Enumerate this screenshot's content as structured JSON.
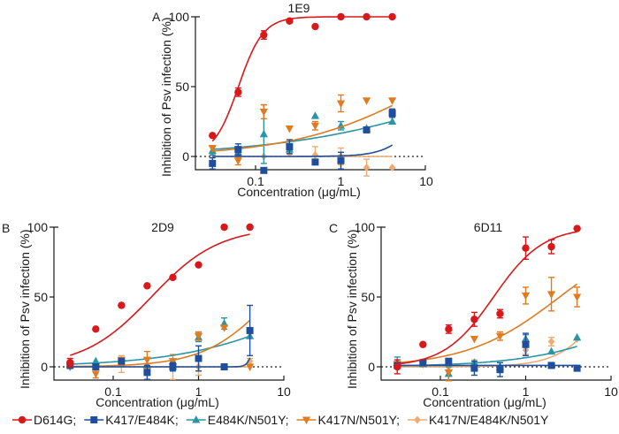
{
  "legend": [
    {
      "name": "D614G",
      "label": "D614G;",
      "color": "#d7191c",
      "marker": "circle"
    },
    {
      "name": "K417/E484K",
      "label": "K417/E484K;",
      "color": "#1f4e9c",
      "marker": "square"
    },
    {
      "name": "E484K/N501Y",
      "label": "E484K/N501Y;",
      "color": "#2b95a6",
      "marker": "triangle-up"
    },
    {
      "name": "K417N/N501Y",
      "label": "K417N/N501Y;",
      "color": "#e07b1f",
      "marker": "triangle-down"
    },
    {
      "name": "K417N/E484K/N501Y",
      "label": "K417N/E484K/N501Y",
      "color": "#eeac72",
      "marker": "diamond"
    }
  ],
  "chart_data": [
    {
      "type": "scatter",
      "panel": "A",
      "title": "1E9",
      "xlabel": "Concentration (μg/mL)",
      "ylabel": "Inhibition of Psv infection (%)",
      "xscale": "log",
      "xlim": [
        0.02,
        10
      ],
      "ylim": [
        -10,
        100
      ],
      "xticks": [
        "0.1",
        "1",
        "10"
      ],
      "yticks": [
        "0",
        "50",
        "100"
      ],
      "x": [
        0.03125,
        0.0625,
        0.125,
        0.25,
        0.5,
        1,
        2,
        4
      ],
      "series": [
        {
          "name": "D614G",
          "values": [
            15,
            46,
            87,
            97,
            93,
            100,
            100,
            100
          ],
          "errors": [
            0,
            3,
            3,
            0,
            0,
            0,
            0,
            0
          ],
          "fit": {
            "bottom": 0,
            "top": 100,
            "ec50": 0.063,
            "hill": 3.0
          }
        },
        {
          "name": "K417/E484K",
          "values": [
            -5,
            5,
            -10,
            7,
            -4,
            -3,
            19,
            31
          ],
          "errors": [
            4,
            4,
            0,
            5,
            0,
            6,
            0,
            3
          ],
          "fit": {
            "bottom": 0,
            "top": 100,
            "ec50": 12,
            "hill": 2.2
          }
        },
        {
          "name": "E484K/N501Y",
          "values": [
            4,
            3,
            16,
            5,
            29,
            22,
            20,
            25
          ],
          "errors": [
            3,
            0,
            21,
            0,
            0,
            3,
            0,
            0
          ],
          "fit": {
            "bottom": 0,
            "top": 100,
            "ec50": 70,
            "hill": 0.38
          }
        },
        {
          "name": "K417N/N501Y",
          "values": [
            6,
            -3,
            32,
            20,
            22,
            38,
            40,
            40
          ],
          "errors": [
            0,
            3,
            5,
            0,
            3,
            6,
            0,
            0
          ],
          "fit": {
            "bottom": 0,
            "top": 100,
            "ec50": 11,
            "hill": 0.55
          }
        },
        {
          "name": "K417N/E484K/N501Y",
          "values": [
            2,
            0,
            0,
            2,
            1,
            0,
            -8,
            -8
          ],
          "errors": [
            0,
            0,
            0,
            2,
            6,
            6,
            6,
            0
          ],
          "fit": {
            "flat": 0
          }
        }
      ]
    },
    {
      "type": "scatter",
      "panel": "B",
      "title": "2D9",
      "xlabel": "Concentration (μg/mL)",
      "ylabel": "Inhibition of Psv infection (%)",
      "xscale": "log",
      "xlim": [
        0.02,
        10
      ],
      "ylim": [
        -10,
        100
      ],
      "xticks": [
        "0.1",
        "1",
        "10"
      ],
      "yticks": [
        "0",
        "50",
        "100"
      ],
      "x": [
        0.03125,
        0.0625,
        0.125,
        0.25,
        0.5,
        1,
        2,
        4
      ],
      "series": [
        {
          "name": "D614G",
          "values": [
            3,
            27,
            44,
            58,
            64,
            73,
            100,
            100
          ],
          "errors": [
            3,
            0,
            0,
            0,
            0,
            0,
            0,
            0
          ],
          "fit": {
            "bottom": 0,
            "top": 100,
            "ec50": 0.28,
            "hill": 1.1
          }
        },
        {
          "name": "K417/E484K",
          "values": [
            1,
            0,
            4,
            -4,
            0,
            6,
            0,
            26
          ],
          "errors": [
            2,
            2,
            0,
            5,
            3,
            9,
            0,
            18
          ],
          "fit": {
            "bottom": 0,
            "top": 100,
            "ec50": 5.0,
            "hill": 12
          }
        },
        {
          "name": "E484K/N501Y",
          "values": [
            2,
            4,
            2,
            1,
            4,
            21,
            31,
            22
          ],
          "errors": [
            0,
            0,
            0,
            0,
            0,
            3,
            4,
            0
          ],
          "fit": {
            "bottom": 0,
            "top": 100,
            "ec50": 40,
            "hill": 0.55
          }
        },
        {
          "name": "K417N/N501Y",
          "values": [
            0,
            -5,
            5,
            5,
            4,
            22,
            28,
            0
          ],
          "errors": [
            0,
            3,
            0,
            6,
            0,
            3,
            0,
            0
          ],
          "fit": {
            "bottom": 0,
            "top": 100,
            "ec50": 7.5,
            "hill": 1.1
          }
        },
        {
          "name": "K417N/E484K/N501Y",
          "values": [
            0,
            0,
            2,
            0,
            0,
            0,
            0,
            4
          ],
          "errors": [
            0,
            0,
            6,
            0,
            9,
            6,
            0,
            2
          ],
          "fit": {
            "flat": 0
          }
        }
      ]
    },
    {
      "type": "scatter",
      "panel": "C",
      "title": "6D11",
      "xlabel": "Concentration (μg/mL)",
      "ylabel": "Inhibition of Psv infection (%)",
      "xscale": "log",
      "xlim": [
        0.02,
        10
      ],
      "ylim": [
        -10,
        100
      ],
      "xticks": [
        "0.1",
        "1",
        "10"
      ],
      "yticks": [
        "0",
        "50",
        "100"
      ],
      "x": [
        0.03125,
        0.0625,
        0.125,
        0.25,
        0.5,
        1,
        2,
        4
      ],
      "series": [
        {
          "name": "D614G",
          "values": [
            0,
            16,
            27,
            34,
            38,
            85,
            86,
            99
          ],
          "errors": [
            5,
            0,
            3,
            5,
            3,
            8,
            5,
            0
          ],
          "fit": {
            "bottom": 0,
            "top": 100,
            "ec50": 0.42,
            "hill": 1.5
          }
        },
        {
          "name": "K417/E484K",
          "values": [
            1,
            3,
            4,
            -1,
            -2,
            16,
            1,
            -1
          ],
          "errors": [
            0,
            0,
            0,
            5,
            5,
            8,
            0,
            0
          ],
          "fit": {
            "flat": 1
          }
        },
        {
          "name": "E484K/N501Y",
          "values": [
            3,
            2,
            -5,
            3,
            0,
            20,
            11,
            21
          ],
          "errors": [
            4,
            0,
            5,
            0,
            0,
            3,
            0,
            0
          ],
          "fit": {
            "bottom": 0,
            "top": 100,
            "ec50": 60,
            "hill": 0.65
          }
        },
        {
          "name": "K417N/N501Y",
          "values": [
            2,
            2,
            -4,
            20,
            22,
            51,
            52,
            50
          ],
          "errors": [
            0,
            0,
            6,
            0,
            3,
            6,
            12,
            7
          ],
          "fit": {
            "bottom": 0,
            "top": 100,
            "ec50": 2.5,
            "hill": 0.8
          }
        },
        {
          "name": "K417N/E484K/N501Y",
          "values": [
            1,
            2,
            0,
            2,
            0,
            12,
            18,
            20
          ],
          "errors": [
            0,
            0,
            0,
            3,
            0,
            3,
            3,
            0
          ],
          "fit": {
            "bottom": 0,
            "top": 100,
            "ec50": 10,
            "hill": 1.6
          }
        }
      ]
    }
  ]
}
